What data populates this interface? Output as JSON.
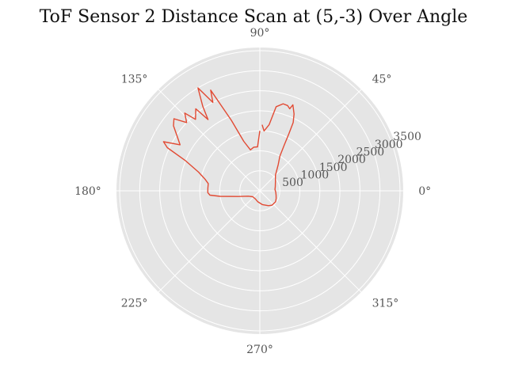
{
  "chart_data": {
    "type": "line",
    "projection": "polar",
    "title": "ToF Sensor 2 Distance Scan at (5,-3) Over Angle",
    "angle_unit": "degrees",
    "angle_ticks": [
      {
        "value": 0,
        "label": "0°"
      },
      {
        "value": 45,
        "label": "45°"
      },
      {
        "value": 90,
        "label": "90°"
      },
      {
        "value": 135,
        "label": "135°"
      },
      {
        "value": 180,
        "label": "180°"
      },
      {
        "value": 225,
        "label": "225°"
      },
      {
        "value": 270,
        "label": "270°"
      },
      {
        "value": 315,
        "label": "315°"
      }
    ],
    "radial_ticks": [
      {
        "value": 500,
        "label": "500"
      },
      {
        "value": 1000,
        "label": "1000"
      },
      {
        "value": 1500,
        "label": "1500"
      },
      {
        "value": 2000,
        "label": "2000"
      },
      {
        "value": 2500,
        "label": "2500"
      },
      {
        "value": 3000,
        "label": "3000"
      },
      {
        "value": 3500,
        "label": "3500"
      }
    ],
    "rlim": [
      0,
      3600
    ],
    "grid": true,
    "series": [
      {
        "name": "distance",
        "color": "#E24A33",
        "points": [
          {
            "theta": 88,
            "r": 1650
          },
          {
            "theta": 86,
            "r": 1500
          },
          {
            "theta": 82,
            "r": 1670
          },
          {
            "theta": 79,
            "r": 2140
          },
          {
            "theta": 75,
            "r": 2250
          },
          {
            "theta": 72,
            "r": 2240
          },
          {
            "theta": 70,
            "r": 2180
          },
          {
            "theta": 69,
            "r": 2300
          },
          {
            "theta": 66,
            "r": 2100
          },
          {
            "theta": 64,
            "r": 1900
          },
          {
            "theta": 63,
            "r": 1600
          },
          {
            "theta": 62,
            "r": 1300
          },
          {
            "theta": 60,
            "r": 1000
          },
          {
            "theta": 55,
            "r": 800
          },
          {
            "theta": 45,
            "r": 550
          },
          {
            "theta": 30,
            "r": 450
          },
          {
            "theta": 15,
            "r": 400
          },
          {
            "theta": 5,
            "r": 380
          },
          {
            "theta": -5,
            "r": 400
          },
          {
            "theta": -15,
            "r": 420
          },
          {
            "theta": -25,
            "r": 450
          },
          {
            "theta": -35,
            "r": 480
          },
          {
            "theta": -50,
            "r": 470
          },
          {
            "theta": -60,
            "r": 430
          },
          {
            "theta": -80,
            "r": 350
          },
          {
            "theta": -100,
            "r": 280
          },
          {
            "theta": -120,
            "r": 230
          },
          {
            "theta": -140,
            "r": 230
          },
          {
            "theta": -155,
            "r": 320
          },
          {
            "theta": -165,
            "r": 550
          },
          {
            "theta": -172,
            "r": 1000
          },
          {
            "theta": -175,
            "r": 1250
          },
          {
            "theta": -178,
            "r": 1300
          },
          {
            "theta": 177,
            "r": 1300
          },
          {
            "theta": 172,
            "r": 1300
          },
          {
            "theta": 168,
            "r": 1400
          },
          {
            "theta": 163,
            "r": 1600
          },
          {
            "theta": 158,
            "r": 2000
          },
          {
            "theta": 155,
            "r": 2550
          },
          {
            "theta": 153,
            "r": 2700
          },
          {
            "theta": 150,
            "r": 2300
          },
          {
            "theta": 147,
            "r": 2450
          },
          {
            "theta": 143,
            "r": 2700
          },
          {
            "theta": 140,
            "r": 2800
          },
          {
            "theta": 137,
            "r": 2500
          },
          {
            "theta": 134,
            "r": 2700
          },
          {
            "theta": 132,
            "r": 2400
          },
          {
            "theta": 128,
            "r": 2600
          },
          {
            "theta": 126,
            "r": 2200
          },
          {
            "theta": 124,
            "r": 2550
          },
          {
            "theta": 121,
            "r": 3000
          },
          {
            "theta": 118,
            "r": 2500
          },
          {
            "theta": 116,
            "r": 2800
          },
          {
            "theta": 112,
            "r": 1900
          },
          {
            "theta": 108,
            "r": 1300
          },
          {
            "theta": 103,
            "r": 1050
          },
          {
            "theta": 98,
            "r": 1100
          },
          {
            "theta": 93,
            "r": 1100
          },
          {
            "theta": 90,
            "r": 1500
          }
        ]
      }
    ]
  }
}
